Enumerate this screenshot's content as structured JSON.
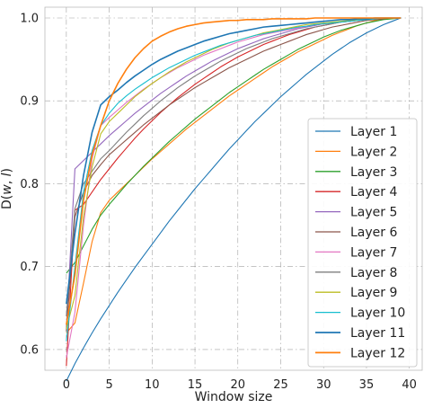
{
  "chart_data": {
    "type": "line",
    "title": "",
    "xlabel": "Window size",
    "ylabel": "D(w, l)",
    "xlim": [
      -2.5,
      41.5
    ],
    "ylim": [
      0.575,
      1.013
    ],
    "xticks": [
      0,
      5,
      10,
      15,
      20,
      25,
      30,
      35,
      40
    ],
    "yticks": [
      0.6,
      0.7,
      0.8,
      0.9,
      1.0
    ],
    "xtick_labels": [
      "0",
      "5",
      "10",
      "15",
      "20",
      "25",
      "30",
      "35",
      "40"
    ],
    "ytick_labels": [
      "0.6",
      "0.7",
      "0.8",
      "0.9",
      "1.0"
    ],
    "grid": true,
    "legend_position": "lower right",
    "x": [
      0,
      1,
      2,
      3,
      4,
      5,
      6,
      7,
      8,
      9,
      10,
      11,
      12,
      13,
      14,
      15,
      16,
      17,
      18,
      19,
      20,
      21,
      22,
      23,
      24,
      25,
      26,
      27,
      28,
      29,
      30,
      31,
      32,
      33,
      34,
      35,
      36,
      37,
      38,
      39
    ],
    "series": [
      {
        "name": "Layer 1",
        "color": "#1f77b4",
        "values": [
          0.562,
          0.583,
          0.602,
          0.62,
          0.637,
          0.653,
          0.669,
          0.684,
          0.699,
          0.713,
          0.727,
          0.741,
          0.755,
          0.768,
          0.781,
          0.794,
          0.806,
          0.818,
          0.83,
          0.842,
          0.853,
          0.864,
          0.875,
          0.885,
          0.895,
          0.905,
          0.914,
          0.923,
          0.932,
          0.94,
          0.948,
          0.956,
          0.963,
          0.97,
          0.976,
          0.982,
          0.987,
          0.992,
          0.996,
          1.0
        ]
      },
      {
        "name": "Layer 2",
        "color": "#ff7f0e",
        "values": [
          0.62,
          0.632,
          0.68,
          0.73,
          0.765,
          0.78,
          0.79,
          0.8,
          0.81,
          0.82,
          0.83,
          0.839,
          0.848,
          0.857,
          0.866,
          0.874,
          0.882,
          0.89,
          0.898,
          0.906,
          0.913,
          0.92,
          0.927,
          0.934,
          0.941,
          0.947,
          0.953,
          0.959,
          0.964,
          0.969,
          0.974,
          0.979,
          0.983,
          0.987,
          0.991,
          0.994,
          0.997,
          0.999,
          1.0,
          1.0
        ]
      },
      {
        "name": "Layer 3",
        "color": "#2ca02c",
        "values": [
          0.692,
          0.705,
          0.725,
          0.745,
          0.762,
          0.775,
          0.787,
          0.799,
          0.81,
          0.821,
          0.831,
          0.841,
          0.851,
          0.86,
          0.869,
          0.878,
          0.886,
          0.894,
          0.902,
          0.91,
          0.917,
          0.924,
          0.931,
          0.938,
          0.944,
          0.95,
          0.956,
          0.962,
          0.967,
          0.972,
          0.977,
          0.981,
          0.985,
          0.988,
          0.991,
          0.994,
          0.996,
          0.998,
          0.999,
          1.0
        ]
      },
      {
        "name": "Layer 4",
        "color": "#d62728",
        "values": [
          0.58,
          0.768,
          0.775,
          0.79,
          0.805,
          0.818,
          0.831,
          0.843,
          0.855,
          0.866,
          0.876,
          0.886,
          0.895,
          0.904,
          0.912,
          0.92,
          0.927,
          0.934,
          0.941,
          0.947,
          0.953,
          0.958,
          0.963,
          0.968,
          0.972,
          0.976,
          0.98,
          0.983,
          0.986,
          0.989,
          0.991,
          0.993,
          0.995,
          0.996,
          0.997,
          0.998,
          0.999,
          1.0,
          1.0,
          1.0
        ]
      },
      {
        "name": "Layer 5",
        "color": "#9467bd",
        "values": [
          0.625,
          0.818,
          0.828,
          0.838,
          0.848,
          0.858,
          0.867,
          0.876,
          0.885,
          0.893,
          0.901,
          0.909,
          0.916,
          0.923,
          0.93,
          0.936,
          0.942,
          0.948,
          0.953,
          0.958,
          0.963,
          0.967,
          0.971,
          0.975,
          0.978,
          0.981,
          0.984,
          0.987,
          0.989,
          0.991,
          0.993,
          0.994,
          0.995,
          0.996,
          0.997,
          0.998,
          0.999,
          1.0,
          1.0,
          1.0
        ]
      },
      {
        "name": "Layer 6",
        "color": "#8c564b",
        "values": [
          0.622,
          0.76,
          0.79,
          0.81,
          0.823,
          0.835,
          0.844,
          0.853,
          0.862,
          0.871,
          0.879,
          0.887,
          0.895,
          0.902,
          0.909,
          0.916,
          0.922,
          0.928,
          0.934,
          0.94,
          0.945,
          0.95,
          0.955,
          0.96,
          0.964,
          0.968,
          0.972,
          0.976,
          0.98,
          0.983,
          0.986,
          0.989,
          0.991,
          0.993,
          0.995,
          0.997,
          0.998,
          0.999,
          1.0,
          1.0
        ]
      },
      {
        "name": "Layer 7",
        "color": "#e377c2",
        "values": [
          0.59,
          0.645,
          0.75,
          0.83,
          0.87,
          0.88,
          0.889,
          0.898,
          0.906,
          0.914,
          0.921,
          0.928,
          0.934,
          0.94,
          0.945,
          0.95,
          0.955,
          0.959,
          0.963,
          0.967,
          0.971,
          0.974,
          0.977,
          0.98,
          0.982,
          0.984,
          0.986,
          0.988,
          0.99,
          0.992,
          0.993,
          0.994,
          0.995,
          0.996,
          0.997,
          0.998,
          0.999,
          1.0,
          1.0,
          1.0
        ]
      },
      {
        "name": "Layer 8",
        "color": "#7f7f7f",
        "values": [
          0.64,
          0.77,
          0.8,
          0.815,
          0.83,
          0.84,
          0.851,
          0.862,
          0.872,
          0.882,
          0.891,
          0.9,
          0.908,
          0.916,
          0.923,
          0.93,
          0.936,
          0.942,
          0.948,
          0.953,
          0.958,
          0.963,
          0.967,
          0.971,
          0.975,
          0.978,
          0.981,
          0.984,
          0.987,
          0.989,
          0.991,
          0.993,
          0.995,
          0.996,
          0.997,
          0.998,
          0.999,
          1.0,
          1.0,
          1.0
        ]
      },
      {
        "name": "Layer 9",
        "color": "#bcbd22",
        "values": [
          0.625,
          0.665,
          0.76,
          0.82,
          0.86,
          0.875,
          0.885,
          0.895,
          0.905,
          0.913,
          0.921,
          0.928,
          0.935,
          0.941,
          0.947,
          0.952,
          0.957,
          0.962,
          0.966,
          0.97,
          0.973,
          0.976,
          0.979,
          0.982,
          0.984,
          0.986,
          0.988,
          0.99,
          0.992,
          0.993,
          0.994,
          0.995,
          0.996,
          0.997,
          0.998,
          0.999,
          0.999,
          1.0,
          1.0,
          1.0
        ]
      },
      {
        "name": "Layer 10",
        "color": "#17becf",
        "values": [
          0.61,
          0.7,
          0.79,
          0.84,
          0.87,
          0.885,
          0.897,
          0.906,
          0.914,
          0.921,
          0.928,
          0.934,
          0.94,
          0.945,
          0.95,
          0.955,
          0.959,
          0.963,
          0.967,
          0.97,
          0.973,
          0.976,
          0.979,
          0.981,
          0.983,
          0.985,
          0.987,
          0.989,
          0.99,
          0.992,
          0.993,
          0.994,
          0.995,
          0.996,
          0.997,
          0.998,
          0.999,
          1.0,
          1.0,
          1.0
        ]
      },
      {
        "name": "Layer 11",
        "color": "#1f77b4",
        "values": [
          0.655,
          0.74,
          0.81,
          0.862,
          0.895,
          0.905,
          0.913,
          0.922,
          0.93,
          0.937,
          0.944,
          0.95,
          0.955,
          0.96,
          0.964,
          0.968,
          0.972,
          0.975,
          0.978,
          0.981,
          0.983,
          0.985,
          0.987,
          0.989,
          0.99,
          0.991,
          0.992,
          0.993,
          0.994,
          0.995,
          0.996,
          0.997,
          0.998,
          0.998,
          0.999,
          0.999,
          1.0,
          1.0,
          1.0,
          1.0
        ]
      },
      {
        "name": "Layer 12",
        "color": "#ff7f0e",
        "values": [
          0.63,
          0.69,
          0.78,
          0.835,
          0.87,
          0.9,
          0.921,
          0.938,
          0.952,
          0.963,
          0.972,
          0.978,
          0.983,
          0.987,
          0.99,
          0.992,
          0.994,
          0.995,
          0.996,
          0.997,
          0.997,
          0.998,
          0.998,
          0.998,
          0.999,
          0.999,
          0.999,
          0.999,
          0.999,
          1.0,
          1.0,
          1.0,
          1.0,
          1.0,
          1.0,
          1.0,
          1.0,
          1.0,
          1.0,
          1.0
        ]
      }
    ]
  }
}
